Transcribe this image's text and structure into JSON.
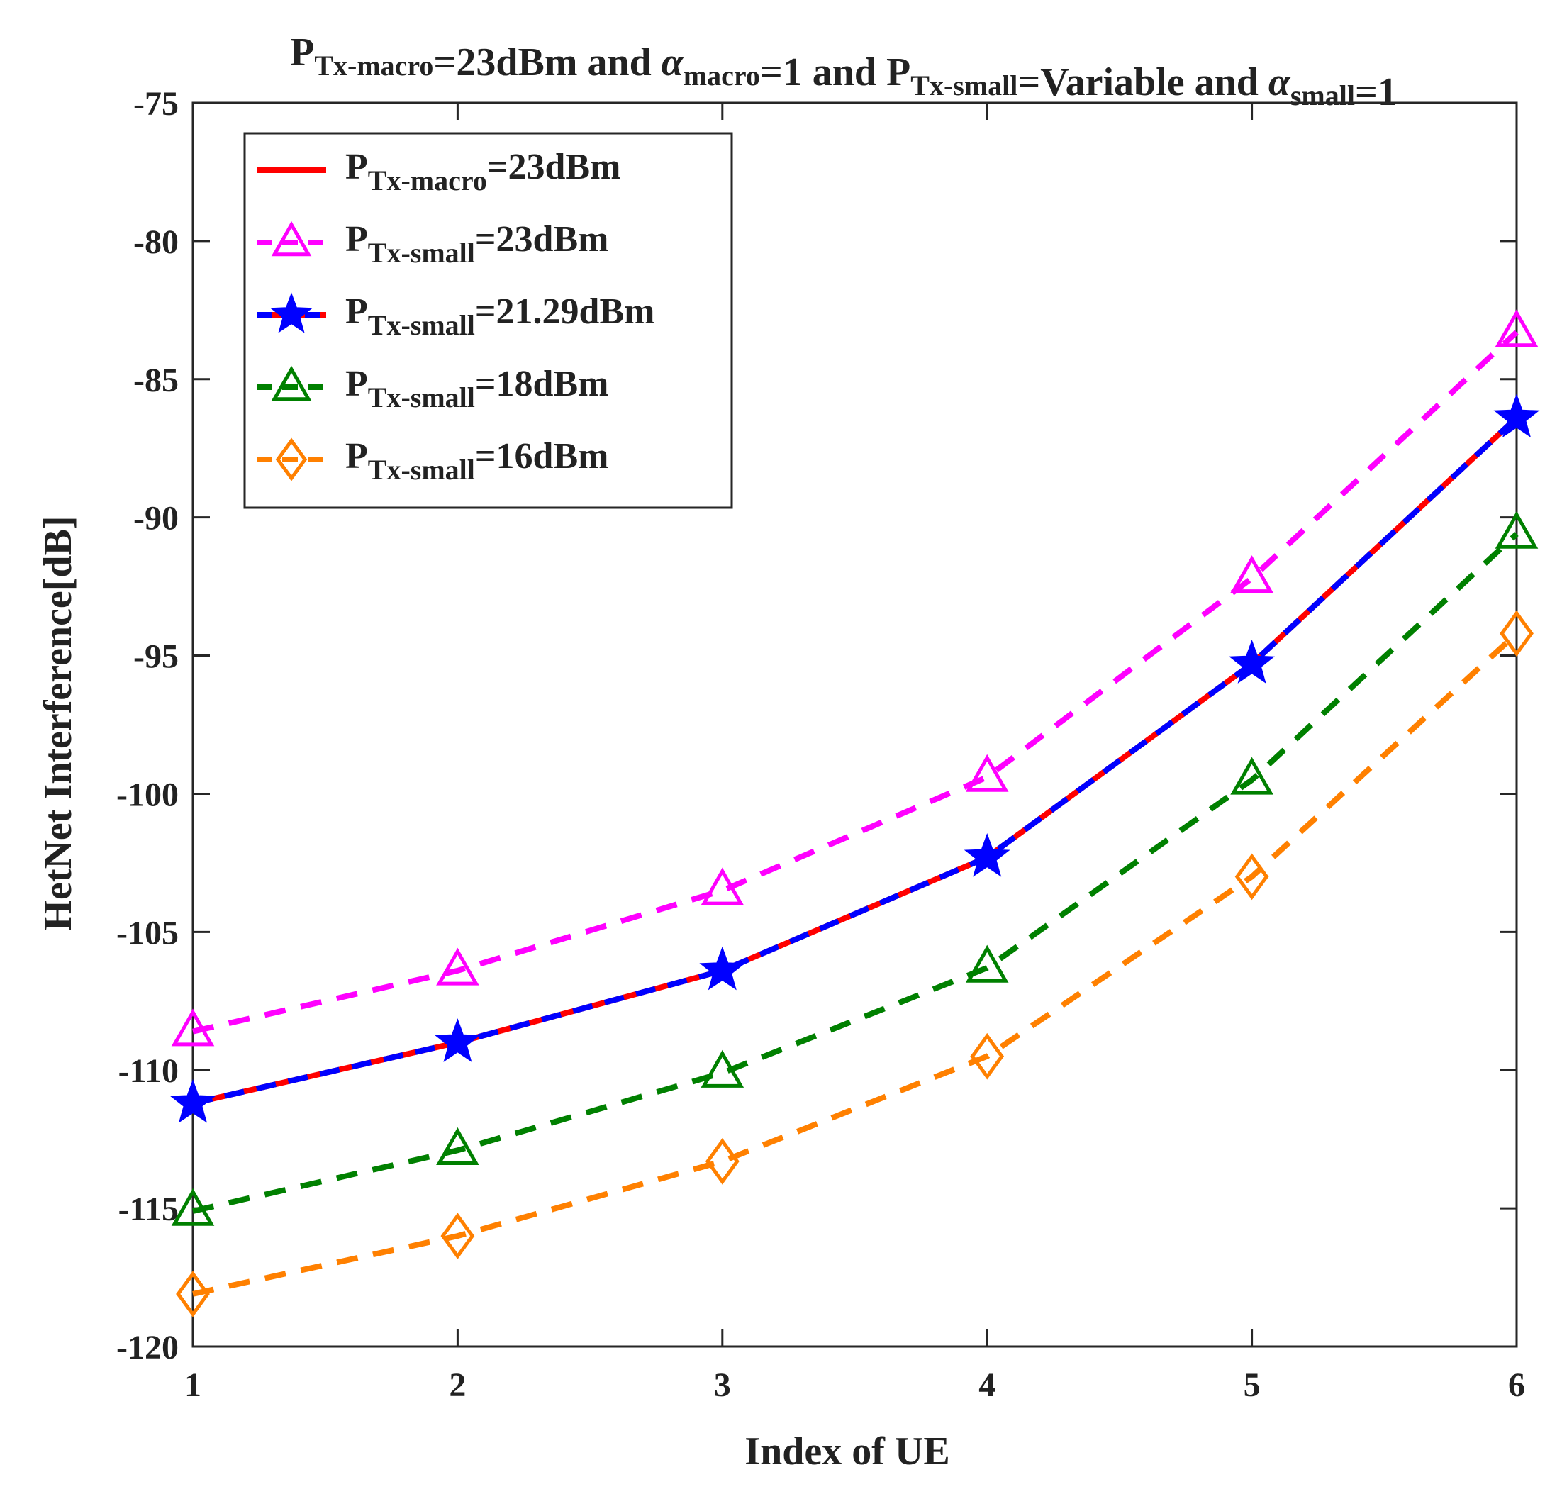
{
  "chart_data": {
    "type": "line",
    "title": {
      "parts": [
        {
          "text": "P"
        },
        {
          "text": "Tx-macro",
          "sub": true
        },
        {
          "text": "=23dBm and "
        },
        {
          "text": "α",
          "italic": true
        },
        {
          "text": "macro",
          "sub": true
        },
        {
          "text": "=1 and P"
        },
        {
          "text": "Tx-small",
          "sub": true
        },
        {
          "text": "=Variable and "
        },
        {
          "text": "α",
          "italic": true
        },
        {
          "text": "small",
          "sub": true
        },
        {
          "text": "=1"
        }
      ]
    },
    "xlabel": "Index of UE",
    "ylabel": "HetNet Interference[dB]",
    "x": [
      1,
      2,
      3,
      4,
      5,
      6
    ],
    "xlim": [
      1,
      6
    ],
    "ylim": [
      -120,
      -75
    ],
    "xticks": [
      "1",
      "2",
      "3",
      "4",
      "5",
      "6"
    ],
    "yticks": [
      "-75",
      "-80",
      "-85",
      "-90",
      "-95",
      "-100",
      "-105",
      "-110",
      "-115",
      "-120"
    ],
    "legend_position": "top-left",
    "series": [
      {
        "name": "P_Tx-macro=23dBm",
        "label_main": "P",
        "label_sub": "Tx-macro",
        "label_rest": "=23dBm",
        "color": "#ff0000",
        "dash": "solid",
        "marker": "dot",
        "values": [
          -111.2,
          -109.0,
          -106.4,
          -102.3,
          -95.3,
          -86.4
        ]
      },
      {
        "name": "P_Tx-small=23dBm",
        "label_main": "P",
        "label_sub": "Tx-small",
        "label_rest": "=23dBm",
        "color": "#ff00ff",
        "dash": "dashed",
        "marker": "triangle",
        "values": [
          -108.6,
          -106.4,
          -103.5,
          -99.4,
          -92.2,
          -83.3
        ]
      },
      {
        "name": "P_Tx-small=21.29dBm",
        "label_main": "P",
        "label_sub": "Tx-small",
        "label_rest": "=21.29dBm",
        "color": "#0000ff",
        "dash": "dashed-over-red",
        "marker": "star",
        "values": [
          -111.2,
          -109.0,
          -106.4,
          -102.3,
          -95.3,
          -86.4
        ]
      },
      {
        "name": "P_Tx-small=18dBm",
        "label_main": "P",
        "label_sub": "Tx-small",
        "label_rest": "=18dBm",
        "color": "#008000",
        "dash": "dashed",
        "marker": "triangle",
        "values": [
          -115.1,
          -112.9,
          -110.1,
          -106.3,
          -99.5,
          -90.6
        ]
      },
      {
        "name": "P_Tx-small=16dBm",
        "label_main": "P",
        "label_sub": "Tx-small",
        "label_rest": "=16dBm",
        "color": "#ff8000",
        "dash": "dashed",
        "marker": "diamond",
        "values": [
          -118.1,
          -116.0,
          -113.3,
          -109.5,
          -103.0,
          -94.2
        ]
      }
    ]
  }
}
